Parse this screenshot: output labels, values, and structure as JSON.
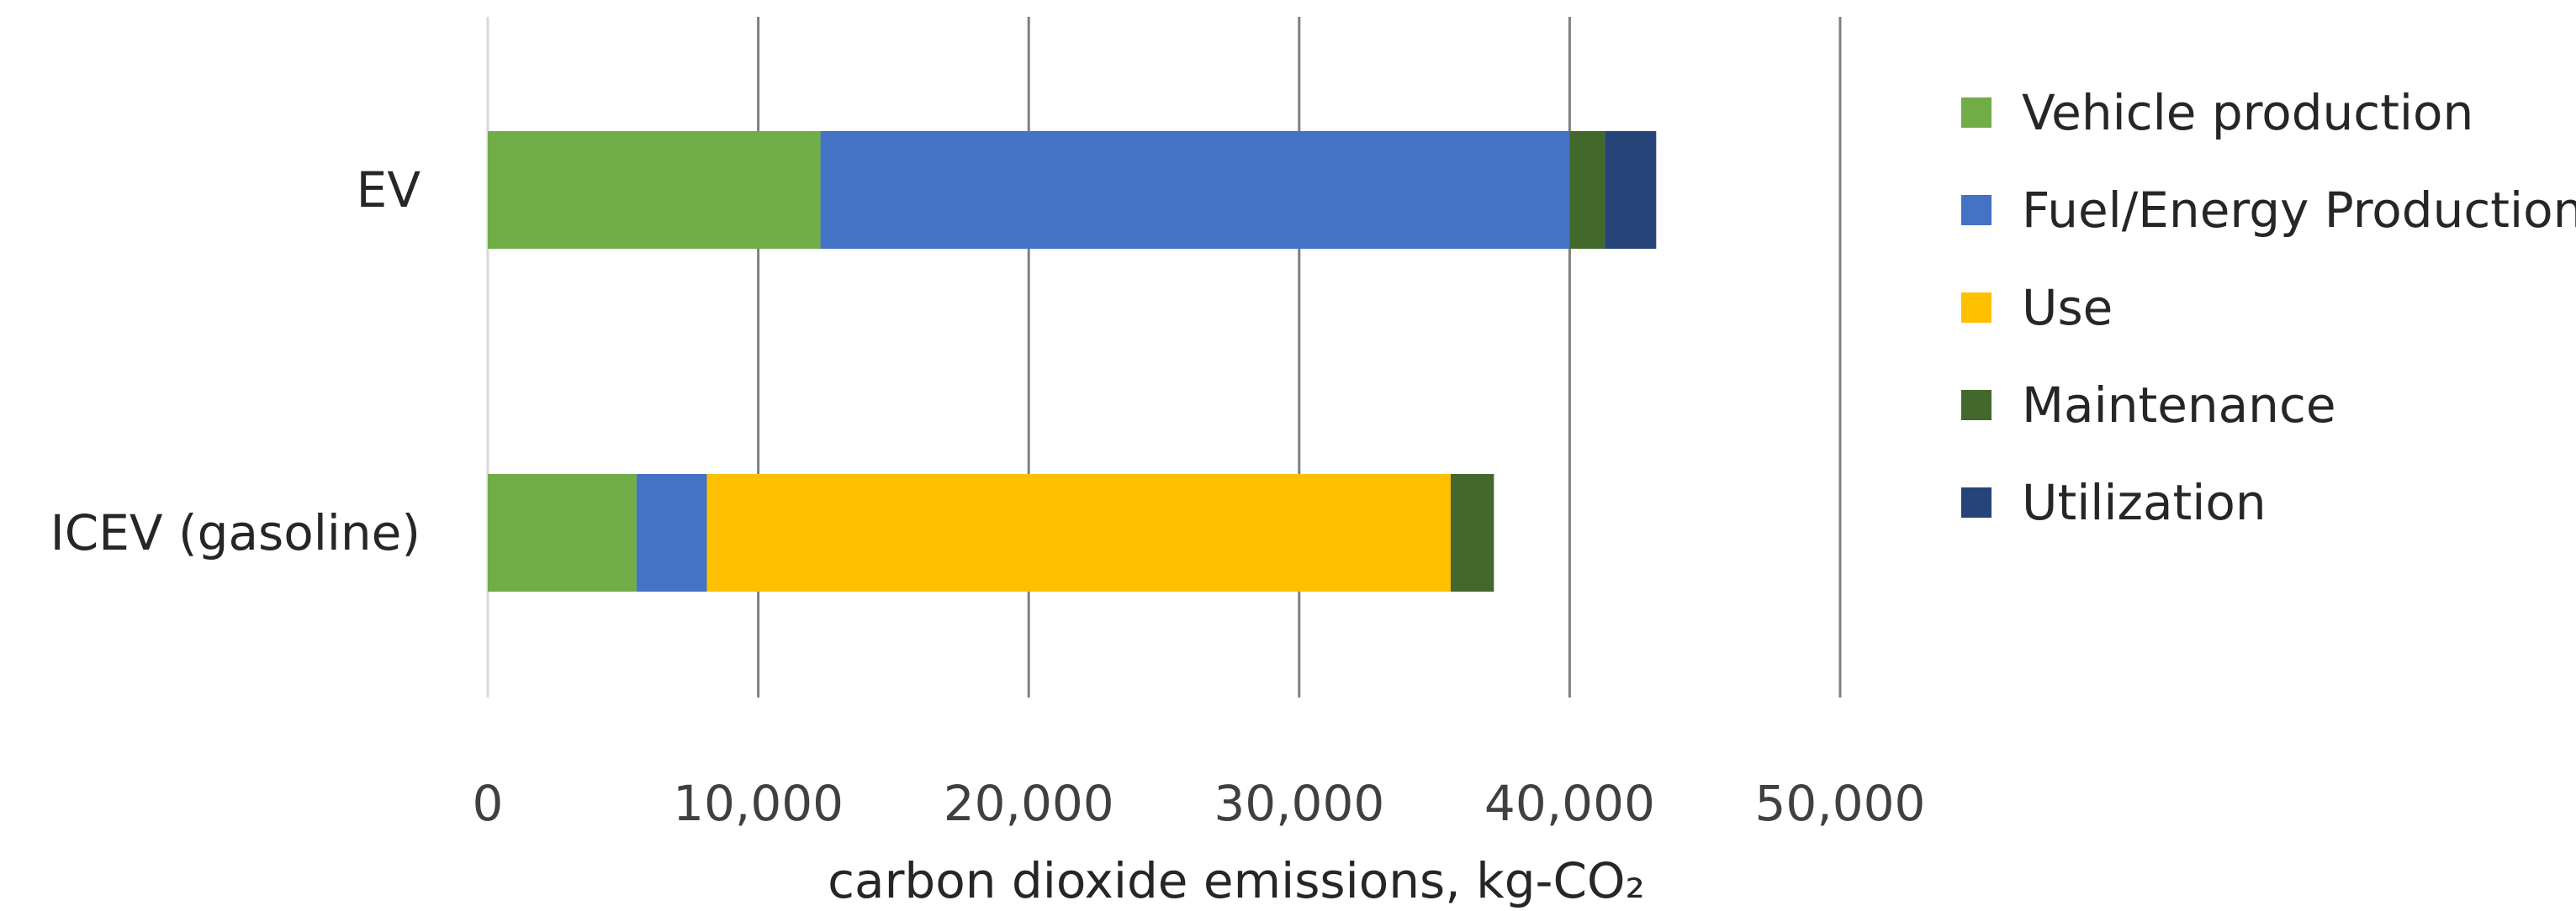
{
  "chart_data": {
    "type": "bar",
    "orientation": "horizontal",
    "stacked": true,
    "categories": [
      "EV",
      "ICEV (gasoline)"
    ],
    "series": [
      {
        "name": "Vehicle production",
        "color": "#70ad47",
        "values": [
          12300,
          5500
        ]
      },
      {
        "name": "Fuel/Energy Production",
        "color": "#4472c4",
        "values": [
          27700,
          2600
        ]
      },
      {
        "name": "Use",
        "color": "#ffc000",
        "values": [
          0,
          27500
        ]
      },
      {
        "name": "Maintenance",
        "color": "#43682b",
        "values": [
          1300,
          1600
        ]
      },
      {
        "name": "Utilization",
        "color": "#264478",
        "values": [
          1900,
          0
        ]
      }
    ],
    "xlabel": "carbon dioxide emissions, kg-CO₂",
    "ylabel": "",
    "xlim": [
      0,
      50000
    ],
    "ticks": [
      0,
      10000,
      20000,
      30000,
      40000,
      50000
    ],
    "tick_labels": [
      "0",
      "10,000",
      "20,000",
      "30,000",
      "40,000",
      "50,000"
    ],
    "grid": "vertical",
    "legend": "right"
  }
}
